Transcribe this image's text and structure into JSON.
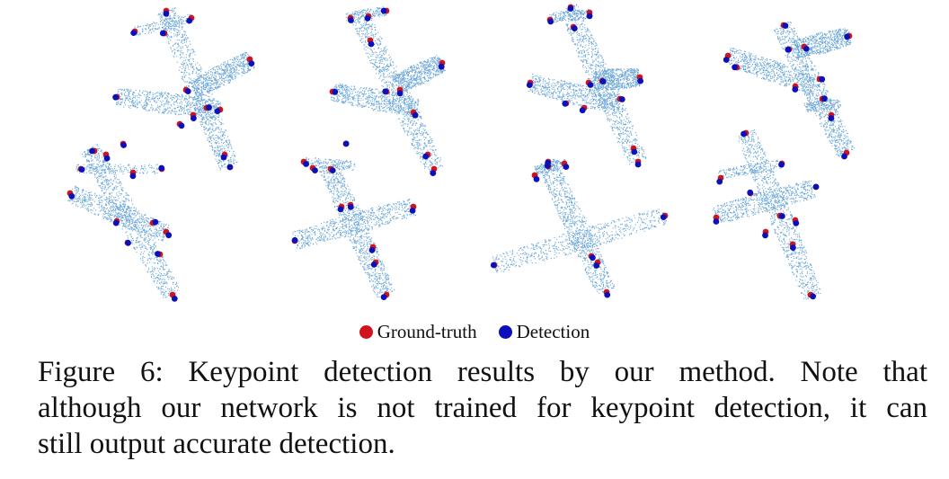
{
  "legend": {
    "ground_truth": {
      "label": "Ground-truth",
      "color": "#d0141e"
    },
    "detection": {
      "label": "Detection",
      "color": "#0c10b8"
    }
  },
  "caption": {
    "line1": "Figure 6:  Keypoint detection results by our method.  Note that",
    "line2": "although our network is not trained for keypoint detection, it can",
    "line3": "still output accurate detection."
  },
  "point_color": "#6aa6d8"
}
